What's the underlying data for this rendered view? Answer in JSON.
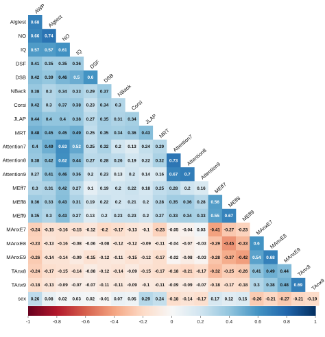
{
  "chart_data": {
    "type": "heatmap",
    "variables": [
      "AWP",
      "Algtest",
      "NO",
      "IQ",
      "DSF",
      "DSB",
      "NBack",
      "Corsi",
      "JLAP",
      "MRT",
      "Attention7",
      "Attention8",
      "Attention9",
      "MEff7",
      "MEff8",
      "MEff9",
      "MAnxE7",
      "MAnxE8",
      "MAnxE9",
      "TAnx8",
      "TAnx9",
      "sex"
    ],
    "rows": [
      {
        "name": "Algtest",
        "values": [
          0.68
        ]
      },
      {
        "name": "NO",
        "values": [
          0.66,
          0.74
        ]
      },
      {
        "name": "IQ",
        "values": [
          0.57,
          0.57,
          0.61
        ]
      },
      {
        "name": "DSF",
        "values": [
          0.41,
          0.35,
          0.35,
          0.36
        ]
      },
      {
        "name": "DSB",
        "values": [
          0.42,
          0.39,
          0.46,
          0.5,
          0.6
        ]
      },
      {
        "name": "NBack",
        "values": [
          0.38,
          0.3,
          0.34,
          0.33,
          0.29,
          0.37
        ]
      },
      {
        "name": "Corsi",
        "values": [
          0.42,
          0.3,
          0.37,
          0.38,
          0.23,
          0.34,
          0.3
        ]
      },
      {
        "name": "JLAP",
        "values": [
          0.44,
          0.4,
          0.4,
          0.38,
          0.27,
          0.35,
          0.31,
          0.34
        ]
      },
      {
        "name": "MRT",
        "values": [
          0.48,
          0.45,
          0.45,
          0.49,
          0.25,
          0.35,
          0.34,
          0.36,
          0.43
        ]
      },
      {
        "name": "Attention7",
        "values": [
          0.4,
          0.49,
          0.63,
          0.52,
          0.25,
          0.32,
          0.2,
          0.13,
          0.24,
          0.29
        ]
      },
      {
        "name": "Attention8",
        "values": [
          0.38,
          0.42,
          0.62,
          0.44,
          0.27,
          0.28,
          0.26,
          0.19,
          0.22,
          0.32,
          0.73
        ]
      },
      {
        "name": "Attention9",
        "values": [
          0.27,
          0.41,
          0.46,
          0.36,
          0.2,
          0.23,
          0.13,
          0.2,
          0.14,
          0.16,
          0.67,
          0.7
        ]
      },
      {
        "name": "MEff7",
        "values": [
          0.3,
          0.31,
          0.42,
          0.27,
          0.1,
          0.19,
          0.2,
          0.22,
          0.18,
          0.25,
          0.28,
          0.2,
          0.16
        ]
      },
      {
        "name": "MEff8",
        "values": [
          0.36,
          0.33,
          0.43,
          0.31,
          0.19,
          0.22,
          0.2,
          0.21,
          0.2,
          0.28,
          0.35,
          0.36,
          0.28,
          0.56
        ]
      },
      {
        "name": "MEff9",
        "values": [
          0.35,
          0.3,
          0.43,
          0.27,
          0.13,
          0.2,
          0.23,
          0.23,
          0.2,
          0.27,
          0.33,
          0.34,
          0.33,
          0.55,
          0.67
        ]
      },
      {
        "name": "MAnxE7",
        "values": [
          -0.24,
          -0.15,
          -0.16,
          -0.15,
          -0.12,
          -0.2,
          -0.17,
          -0.13,
          -0.1,
          -0.23,
          -0.05,
          -0.04,
          0.03,
          -0.41,
          -0.27,
          -0.23
        ]
      },
      {
        "name": "MAnxE8",
        "values": [
          -0.23,
          -0.13,
          -0.16,
          -0.08,
          -0.06,
          -0.08,
          -0.12,
          -0.12,
          -0.09,
          -0.11,
          -0.04,
          -0.07,
          -0.03,
          -0.29,
          -0.45,
          -0.33,
          0.6
        ]
      },
      {
        "name": "MAnxE9",
        "values": [
          -0.26,
          -0.14,
          -0.14,
          -0.09,
          -0.15,
          -0.12,
          -0.11,
          -0.15,
          -0.12,
          -0.17,
          -0.02,
          -0.08,
          -0.03,
          -0.28,
          -0.37,
          -0.42,
          0.54,
          0.68
        ]
      },
      {
        "name": "TAnx8",
        "values": [
          -0.24,
          -0.17,
          -0.15,
          -0.14,
          -0.08,
          -0.12,
          -0.14,
          -0.09,
          -0.15,
          -0.17,
          -0.18,
          -0.21,
          -0.17,
          -0.32,
          -0.25,
          -0.26,
          0.41,
          0.49,
          0.44
        ]
      },
      {
        "name": "TAnx9",
        "values": [
          -0.18,
          -0.13,
          -0.09,
          -0.07,
          -0.07,
          -0.11,
          -0.11,
          -0.09,
          -0.1,
          -0.11,
          -0.09,
          -0.09,
          -0.07,
          -0.18,
          -0.17,
          -0.18,
          0.3,
          0.38,
          0.48,
          0.69
        ]
      },
      {
        "name": "sex",
        "values": [
          0.26,
          0.08,
          0.02,
          0.03,
          0.02,
          -0.01,
          0.07,
          0.05,
          0.29,
          0.24,
          -0.18,
          -0.14,
          -0.17,
          0.17,
          0.12,
          0.15,
          -0.26,
          -0.21,
          -0.27,
          -0.21,
          -0.19
        ]
      }
    ],
    "colorscale": {
      "low": "#67001f",
      "mid": "#f7f7f7",
      "high": "#053061"
    },
    "legend": {
      "placement": "bottom",
      "range": [
        -1,
        1
      ],
      "ticks": [
        "-1",
        "-0.8",
        "-0.6",
        "-0.4",
        "-0.2",
        "0",
        "0.2",
        "0.4",
        "0.6",
        "0.8",
        "1"
      ]
    },
    "grid": false
  }
}
